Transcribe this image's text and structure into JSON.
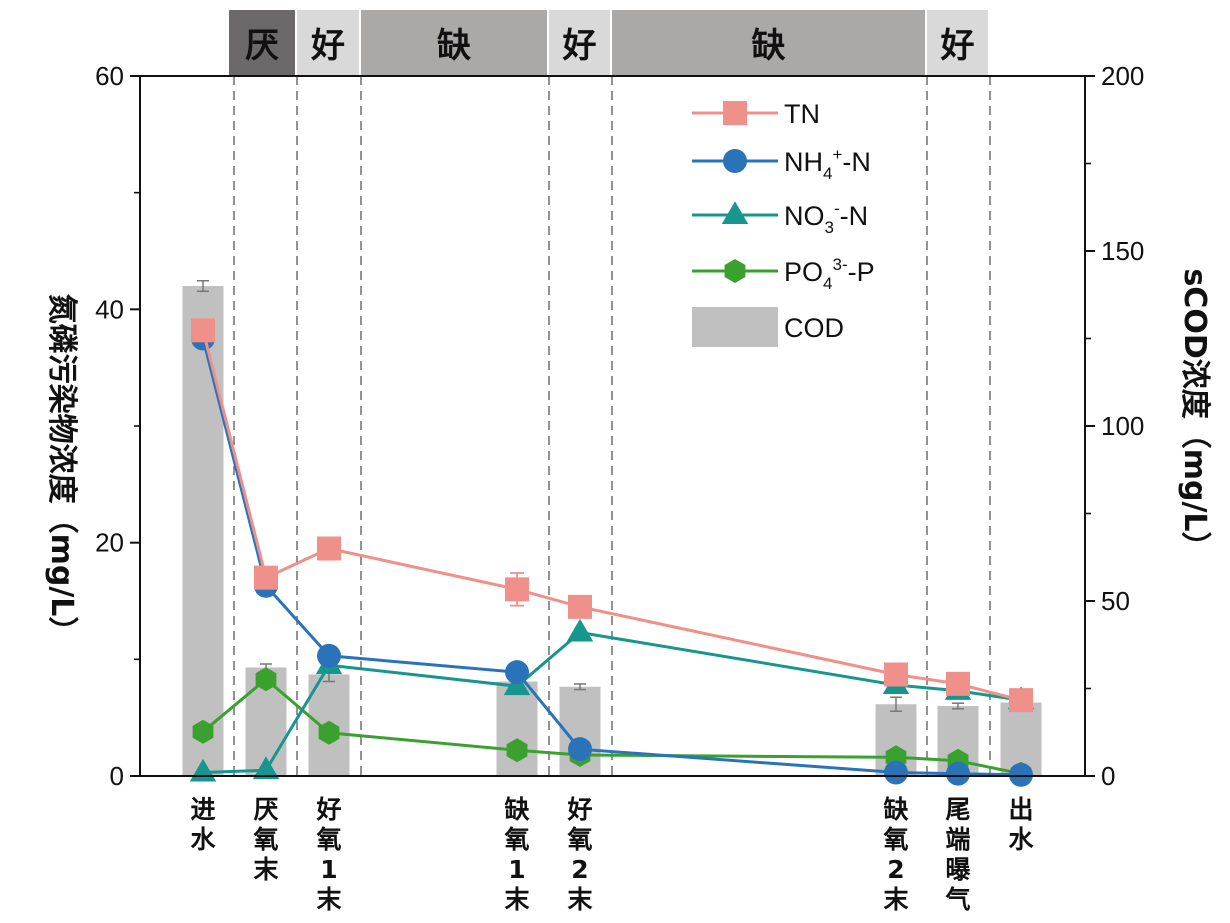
{
  "chart_data": {
    "type": "line",
    "categories": [
      "进水",
      "厌氧末",
      "好氧1末",
      "缺氧1末",
      "好氧2末",
      "缺氧2末",
      "尾端曝气",
      "出水"
    ],
    "stages": [
      {
        "label": "厌",
        "color": "#6b6969",
        "text_color": "#111111"
      },
      {
        "label": "好",
        "color": "#d9d9d9",
        "text_color": "#111111"
      },
      {
        "label": "缺",
        "color": "#aba8a8",
        "text_color": "#111111"
      },
      {
        "label": "好",
        "color": "#d9d9d9",
        "text_color": "#111111"
      },
      {
        "label": "缺",
        "color": "#aba8a8",
        "text_color": "#111111"
      },
      {
        "label": "好",
        "color": "#d9d9d9",
        "text_color": "#111111"
      }
    ],
    "y_left": {
      "label": "氮磷污染物浓度（mg/L）",
      "lim": [
        0,
        60
      ],
      "ticks": [
        "0",
        "20",
        "40",
        "60"
      ]
    },
    "y_right": {
      "label": "sCOD浓度（mg/L）",
      "lim": [
        0,
        200
      ],
      "ticks": [
        "0",
        "50",
        "100",
        "150",
        "200"
      ]
    },
    "series": [
      {
        "name": "TN",
        "color": "#f0908a",
        "marker": "square",
        "values": [
          38.2,
          17.0,
          19.5,
          16.0,
          14.5,
          8.7,
          7.9,
          6.5
        ],
        "errors": [
          0,
          0,
          0,
          1.4,
          0,
          0,
          0,
          0
        ]
      },
      {
        "name": "NH4+-N",
        "color": "#2a73b8",
        "marker": "circle",
        "values": [
          37.5,
          16.3,
          10.3,
          8.9,
          2.3,
          0.3,
          0.2,
          0.1
        ],
        "errors": [
          0,
          0,
          0,
          0,
          0,
          0,
          0,
          0
        ]
      },
      {
        "name": "NO3--N",
        "color": "#16968f",
        "marker": "triangle",
        "values": [
          0.3,
          0.5,
          9.5,
          7.7,
          12.3,
          7.8,
          7.3,
          6.5
        ],
        "errors": [
          0,
          0,
          0,
          0,
          0,
          0,
          0,
          0
        ]
      },
      {
        "name": "PO43--P",
        "color": "#3aa12e",
        "marker": "hexagon",
        "values": [
          3.8,
          8.3,
          3.7,
          2.2,
          1.8,
          1.6,
          1.3,
          0.2
        ],
        "errors": [
          0,
          0,
          0,
          0,
          0,
          0,
          0,
          0
        ]
      }
    ],
    "bars": {
      "name": "COD",
      "color": "#c0c0c0",
      "axis": "right",
      "values": [
        140,
        31,
        29,
        27,
        25.5,
        20.5,
        20,
        21
      ],
      "errors": [
        1.5,
        1,
        2,
        0,
        0.8,
        2,
        0.8,
        0
      ]
    },
    "legend": [
      {
        "base": "TN",
        "sub": "",
        "sup": "",
        "tail": ""
      },
      {
        "base": "NH",
        "sub": "4",
        "sup": "+",
        "tail": "-N"
      },
      {
        "base": "NO",
        "sub": "3",
        "sup": "-",
        "tail": "-N"
      },
      {
        "base": "PO",
        "sub": "4",
        "sup": "3-",
        "tail": "-P"
      },
      {
        "base": "COD",
        "sub": "",
        "sup": "",
        "tail": ""
      }
    ],
    "legend_position": "top-right",
    "grid": false
  }
}
